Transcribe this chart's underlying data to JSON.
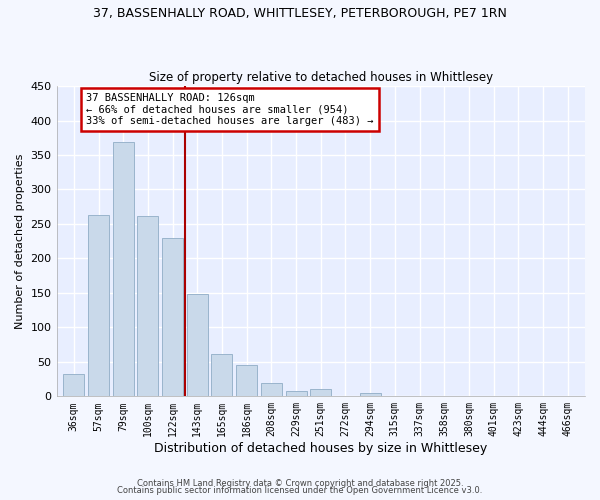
{
  "title1": "37, BASSENHALLY ROAD, WHITTLESEY, PETERBOROUGH, PE7 1RN",
  "title2": "Size of property relative to detached houses in Whittlesey",
  "xlabel": "Distribution of detached houses by size in Whittlesey",
  "ylabel": "Number of detached properties",
  "bar_labels": [
    "36sqm",
    "57sqm",
    "79sqm",
    "100sqm",
    "122sqm",
    "143sqm",
    "165sqm",
    "186sqm",
    "208sqm",
    "229sqm",
    "251sqm",
    "272sqm",
    "294sqm",
    "315sqm",
    "337sqm",
    "358sqm",
    "380sqm",
    "401sqm",
    "423sqm",
    "444sqm",
    "466sqm"
  ],
  "bar_values": [
    33,
    263,
    369,
    262,
    229,
    149,
    61,
    45,
    19,
    8,
    10,
    0,
    5,
    0,
    1,
    0,
    0,
    0,
    0,
    0,
    1
  ],
  "bar_color": "#c9d9ea",
  "bar_edge_color": "#9ab4cc",
  "vline_x": 4.5,
  "vline_color": "#aa0000",
  "annotation_title": "37 BASSENHALLY ROAD: 126sqm",
  "annotation_line1": "← 66% of detached houses are smaller (954)",
  "annotation_line2": "33% of semi-detached houses are larger (483) →",
  "annotation_box_color": "#cc0000",
  "ylim": [
    0,
    450
  ],
  "yticks": [
    0,
    50,
    100,
    150,
    200,
    250,
    300,
    350,
    400,
    450
  ],
  "footer1": "Contains HM Land Registry data © Crown copyright and database right 2025.",
  "footer2": "Contains public sector information licensed under the Open Government Licence v3.0.",
  "bg_color": "#f4f7ff",
  "plot_bg_color": "#e8eeff"
}
